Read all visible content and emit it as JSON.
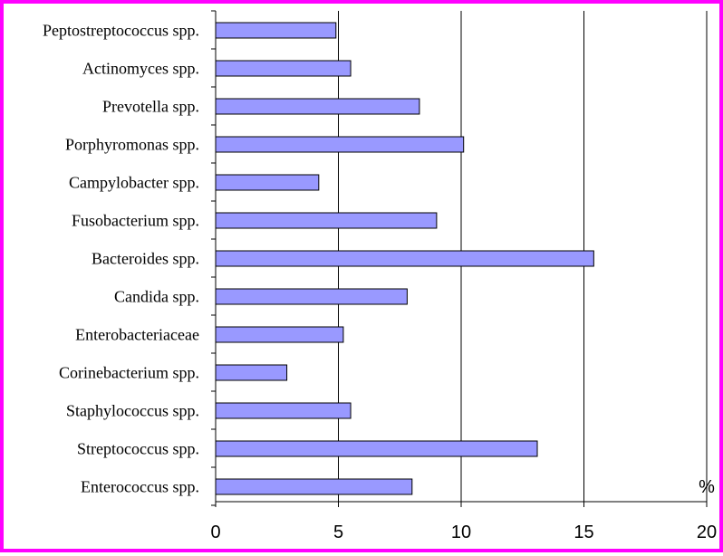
{
  "chart_data": {
    "type": "bar",
    "orientation": "horizontal",
    "categories": [
      "Peptostreptococcus spp.",
      "Actinomyces spp.",
      "Prevotella spp.",
      "Porphyromonas spp.",
      "Campylobacter spp.",
      "Fusobacterium spp.",
      "Bacteroides spp.",
      "Candida spp.",
      "Enterobacteriaceae",
      "Corinebacterium spp.",
      "Staphylococcus spp.",
      "Streptococcus spp.",
      "Enterococcus spp."
    ],
    "values": [
      4.9,
      5.5,
      8.3,
      10.1,
      4.2,
      9.0,
      15.4,
      7.8,
      5.2,
      2.9,
      5.5,
      13.1,
      8.0
    ],
    "xlim": [
      0,
      20
    ],
    "xticks": [
      "0",
      "5",
      "10",
      "15",
      "20"
    ],
    "xtick_values": [
      0,
      5,
      10,
      15,
      20
    ],
    "unit_label": "%",
    "grid": "vertical",
    "legend": "none"
  },
  "colors": {
    "bar_fill": "#9999ff",
    "bar_stroke": "#000000",
    "frame_border": "#ff00ff",
    "gridline": "#000000"
  }
}
